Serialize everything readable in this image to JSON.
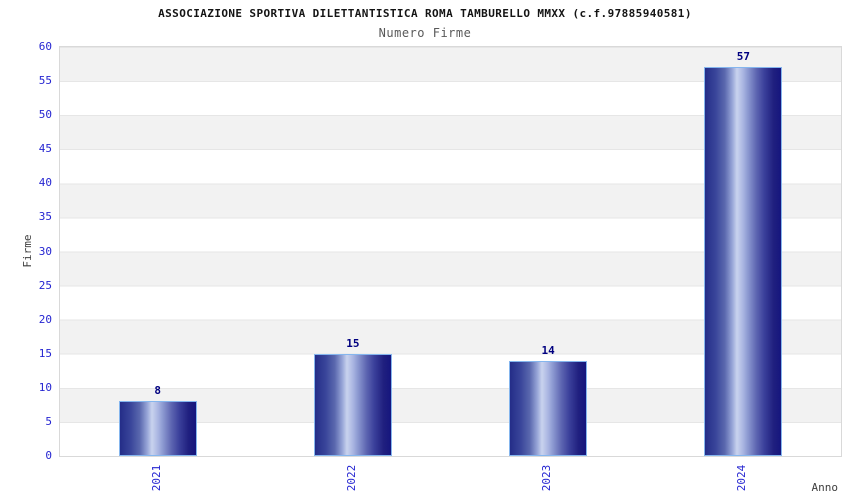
{
  "header": {
    "title": "ASSOCIAZIONE SPORTIVA DILETTANTISTICA ROMA TAMBURELLO MMXX (c.f.97885940581)",
    "subtitle": "Numero Firme"
  },
  "chart_data": {
    "type": "bar",
    "title": "ASSOCIAZIONE SPORTIVA DILETTANTISTICA ROMA TAMBURELLO MMXX (c.f.97885940581)",
    "subtitle": "Numero Firme",
    "categories": [
      "2021",
      "2022",
      "2023",
      "2024"
    ],
    "values": [
      8,
      15,
      14,
      57
    ],
    "bar_labels": [
      "8",
      "15",
      "14",
      "57"
    ],
    "xlabel": "Anno",
    "ylabel": "Firme",
    "ylim": [
      0,
      60
    ],
    "yticks": [
      0,
      5,
      10,
      15,
      20,
      25,
      30,
      35,
      40,
      45,
      50,
      55,
      60
    ],
    "grid": "alternating-horizontal-bands",
    "legend": "none",
    "colors": {
      "tick_label": "#2525d1",
      "value_label": "#000080",
      "axis_label": "#404040",
      "title_text": "#141414",
      "subtitle_text": "#595959",
      "band_gray": "#f2f2f2",
      "band_white": "#ffffff",
      "plot_border": "#d9d9d9",
      "bar_border": "#85b6ee",
      "bar_dark": "#15157e",
      "bar_highlight": "#c9d3ee"
    }
  }
}
